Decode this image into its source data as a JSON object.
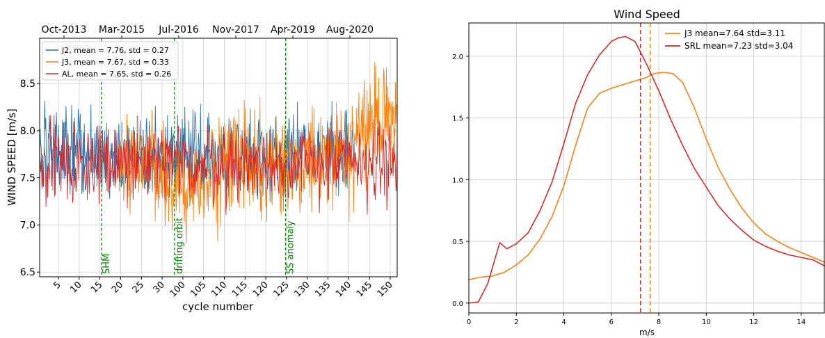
{
  "chart_data": [
    {
      "type": "line",
      "title": "",
      "top_axis_labels": [
        "Oct-2013",
        "Mar-2015",
        "Jul-2016",
        "Nov-2017",
        "Apr-2019",
        "Aug-2020"
      ],
      "xlabel": "cycle number",
      "ylabel": "WIND SPEED [m/s]",
      "ylim": [
        6.45,
        8.98
      ],
      "yticks": [
        "6.5",
        "7.0",
        "7.5",
        "8.0",
        "8.5"
      ],
      "xtick_labels": [
        "5",
        "10",
        "15",
        "20",
        "25",
        "30",
        "100",
        "105",
        "110",
        "115",
        "120",
        "125",
        "130",
        "135",
        "140",
        "145",
        "150"
      ],
      "grid": true,
      "legend_position": "upper-left",
      "series": [
        {
          "name": "J2, mean = 7.76, std = 0.27",
          "color": "#1f77b4",
          "segment": [
            0.0,
            0.88
          ],
          "mean": 7.76,
          "std": 0.27
        },
        {
          "name": "J3, mean = 7.67, std = 0.33",
          "color": "#ff7f0e",
          "segment": [
            0.22,
            1.0
          ],
          "mean": 7.67,
          "std": 0.33
        },
        {
          "name": "AL, mean = 7.65, std = 0.26",
          "color": "#d62728",
          "segment": [
            0.0,
            1.0
          ],
          "mean": 7.65,
          "std": 0.26
        }
      ],
      "vlines": [
        {
          "cycle_fraction": 0.173,
          "label": "SHM",
          "color": "#008000"
        },
        {
          "cycle_fraction": 0.377,
          "label": "drifting orbit",
          "color": "#008000"
        },
        {
          "cycle_fraction": 0.688,
          "label": "SS anomaly",
          "color": "#008000"
        }
      ]
    },
    {
      "type": "line",
      "title": "Wind Speed",
      "xlabel": "m/s",
      "ylabel": "",
      "xlim": [
        0,
        15
      ],
      "ylim": [
        -0.08,
        2.27
      ],
      "xticks": [
        0,
        2,
        4,
        6,
        8,
        10,
        12,
        14
      ],
      "yticks": [
        0.0,
        0.5,
        1.0,
        1.5,
        2.0
      ],
      "grid": true,
      "legend_position": "upper-right",
      "series": [
        {
          "name": "J3  mean=7.64 std=3.11",
          "color": "#ff7f0e",
          "mean_line": 7.64,
          "x": [
            0,
            0.5,
            1,
            1.5,
            2,
            2.5,
            3,
            3.5,
            4,
            4.5,
            5,
            5.5,
            6,
            6.5,
            7,
            7.5,
            7.8,
            8.2,
            8.6,
            9,
            9.5,
            10,
            10.5,
            11,
            11.5,
            12,
            12.5,
            13,
            13.5,
            14,
            14.5,
            15
          ],
          "y": [
            0.19,
            0.21,
            0.22,
            0.25,
            0.31,
            0.39,
            0.52,
            0.7,
            0.95,
            1.28,
            1.58,
            1.7,
            1.74,
            1.77,
            1.8,
            1.83,
            1.86,
            1.87,
            1.86,
            1.79,
            1.58,
            1.33,
            1.1,
            0.92,
            0.77,
            0.65,
            0.56,
            0.5,
            0.45,
            0.41,
            0.37,
            0.33
          ]
        },
        {
          "name": "SRL mean=7.23 std=3.04",
          "color": "#d62728",
          "mean_line": 7.23,
          "x": [
            0,
            0.4,
            0.8,
            1.3,
            1.6,
            2,
            2.5,
            3,
            3.5,
            4,
            4.5,
            5,
            5.5,
            6,
            6.3,
            6.6,
            7,
            7.5,
            8,
            8.5,
            9,
            9.5,
            10,
            10.5,
            11,
            11.5,
            12,
            12.5,
            13,
            13.5,
            14,
            14.5,
            15
          ],
          "y": [
            0.0,
            0.01,
            0.16,
            0.49,
            0.44,
            0.48,
            0.57,
            0.75,
            0.98,
            1.29,
            1.62,
            1.85,
            2.01,
            2.12,
            2.15,
            2.16,
            2.12,
            1.93,
            1.72,
            1.49,
            1.28,
            1.09,
            0.94,
            0.79,
            0.68,
            0.59,
            0.51,
            0.46,
            0.42,
            0.39,
            0.37,
            0.35,
            0.3
          ]
        }
      ]
    }
  ]
}
